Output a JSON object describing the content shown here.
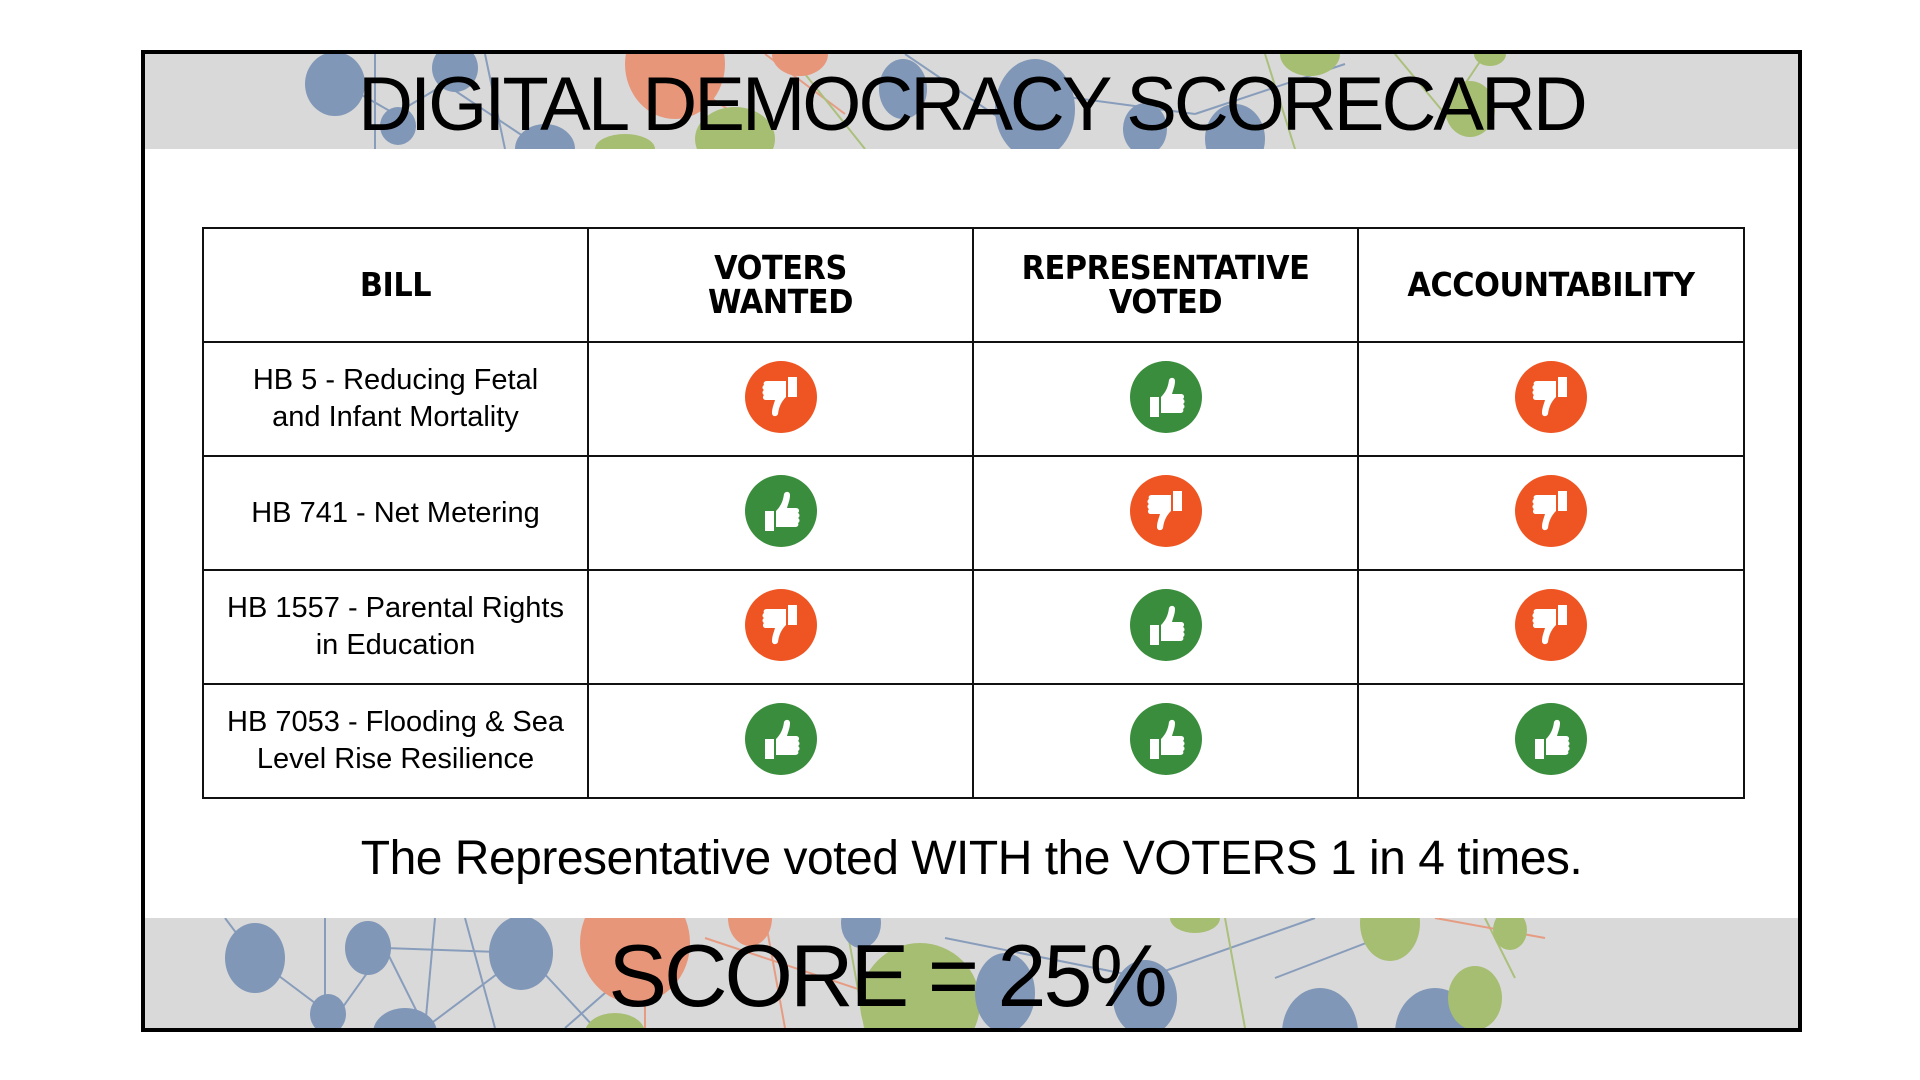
{
  "header": {
    "title": "DIGITAL DEMOCRACY SCORECARD"
  },
  "table": {
    "columns": [
      "BILL",
      "VOTERS WANTED",
      "REPRESENTATIVE VOTED",
      "ACCOUNTABILITY"
    ],
    "column_lines": [
      [
        "BILL"
      ],
      [
        "VOTERS",
        "WANTED"
      ],
      [
        "REPRESENTATIVE",
        "VOTED"
      ],
      [
        "ACCOUNTABILITY"
      ]
    ],
    "rows": [
      {
        "bill_lines": [
          "HB 5 - Reducing Fetal",
          "and Infant Mortality"
        ],
        "voters_wanted": "thumbs-down",
        "representative_voted": "thumbs-up",
        "accountability": "thumbs-down"
      },
      {
        "bill_lines": [
          "HB 741 - Net Metering"
        ],
        "voters_wanted": "thumbs-up",
        "representative_voted": "thumbs-down",
        "accountability": "thumbs-down"
      },
      {
        "bill_lines": [
          "HB 1557 - Parental Rights",
          "in Education"
        ],
        "voters_wanted": "thumbs-down",
        "representative_voted": "thumbs-up",
        "accountability": "thumbs-down"
      },
      {
        "bill_lines": [
          "HB 7053 - Flooding & Sea",
          "Level Rise Resilience"
        ],
        "voters_wanted": "thumbs-up",
        "representative_voted": "thumbs-up",
        "accountability": "thumbs-up"
      }
    ]
  },
  "summary": {
    "text": "The Representative voted WITH the VOTERS 1 in 4 times."
  },
  "footer": {
    "score": "SCORE = 25%"
  },
  "colors": {
    "thumbs_up": "#3a8d3c",
    "thumbs_down": "#ee5522",
    "band_bg": "#d9d9d9",
    "node_blue": "#8097b8",
    "node_orange": "#e8967a",
    "node_green": "#a6be72"
  }
}
